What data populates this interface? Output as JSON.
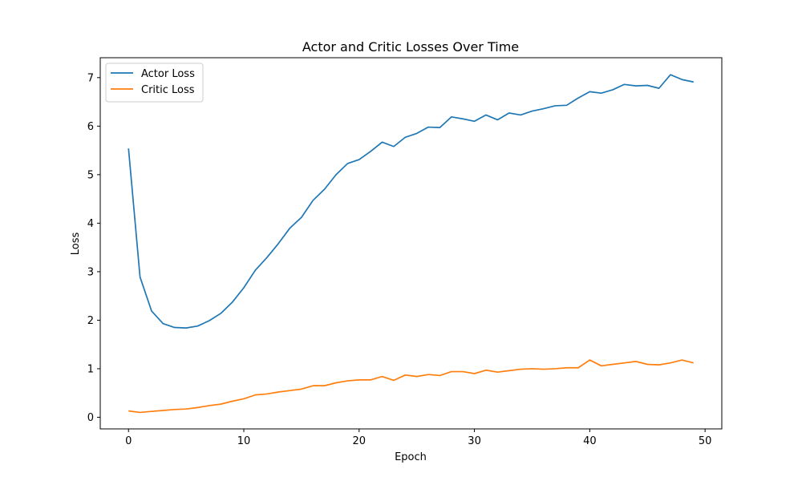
{
  "chart_data": {
    "type": "line",
    "title": "Actor and Critic Losses Over Time",
    "xlabel": "Epoch",
    "ylabel": "Loss",
    "xlim": [
      -2.45,
      51.45
    ],
    "ylim": [
      -0.24,
      7.41
    ],
    "xticks": [
      0,
      10,
      20,
      30,
      40,
      50
    ],
    "yticks": [
      0,
      1,
      2,
      3,
      4,
      5,
      6,
      7
    ],
    "grid": false,
    "legend_position": "top-left",
    "x": [
      0,
      1,
      2,
      3,
      4,
      5,
      6,
      7,
      8,
      9,
      10,
      11,
      12,
      13,
      14,
      15,
      16,
      17,
      18,
      19,
      20,
      21,
      22,
      23,
      24,
      25,
      26,
      27,
      28,
      29,
      30,
      31,
      32,
      33,
      34,
      35,
      36,
      37,
      38,
      39,
      40,
      41,
      42,
      43,
      44,
      45,
      46,
      47,
      48,
      49
    ],
    "series": [
      {
        "name": "Actor Loss",
        "color": "#1f77b4",
        "values": [
          5.54,
          2.89,
          2.19,
          1.93,
          1.85,
          1.84,
          1.88,
          1.99,
          2.14,
          2.37,
          2.67,
          3.03,
          3.29,
          3.58,
          3.9,
          4.12,
          4.47,
          4.7,
          5.0,
          5.23,
          5.31,
          5.48,
          5.67,
          5.58,
          5.77,
          5.85,
          5.98,
          5.97,
          6.19,
          6.15,
          6.1,
          6.23,
          6.13,
          6.27,
          6.23,
          6.31,
          6.36,
          6.42,
          6.43,
          6.58,
          6.71,
          6.68,
          6.75,
          6.86,
          6.83,
          6.84,
          6.78,
          7.06,
          6.96,
          6.91
        ]
      },
      {
        "name": "Critic Loss",
        "color": "#ff7f0e",
        "values": [
          0.13,
          0.1,
          0.12,
          0.14,
          0.16,
          0.17,
          0.2,
          0.24,
          0.27,
          0.33,
          0.38,
          0.46,
          0.48,
          0.52,
          0.55,
          0.58,
          0.65,
          0.65,
          0.71,
          0.75,
          0.77,
          0.77,
          0.84,
          0.76,
          0.87,
          0.84,
          0.88,
          0.86,
          0.94,
          0.94,
          0.9,
          0.97,
          0.93,
          0.96,
          0.99,
          1.0,
          0.99,
          1.0,
          1.02,
          1.02,
          1.18,
          1.06,
          1.09,
          1.12,
          1.15,
          1.09,
          1.08,
          1.12,
          1.18,
          1.12
        ]
      }
    ]
  }
}
